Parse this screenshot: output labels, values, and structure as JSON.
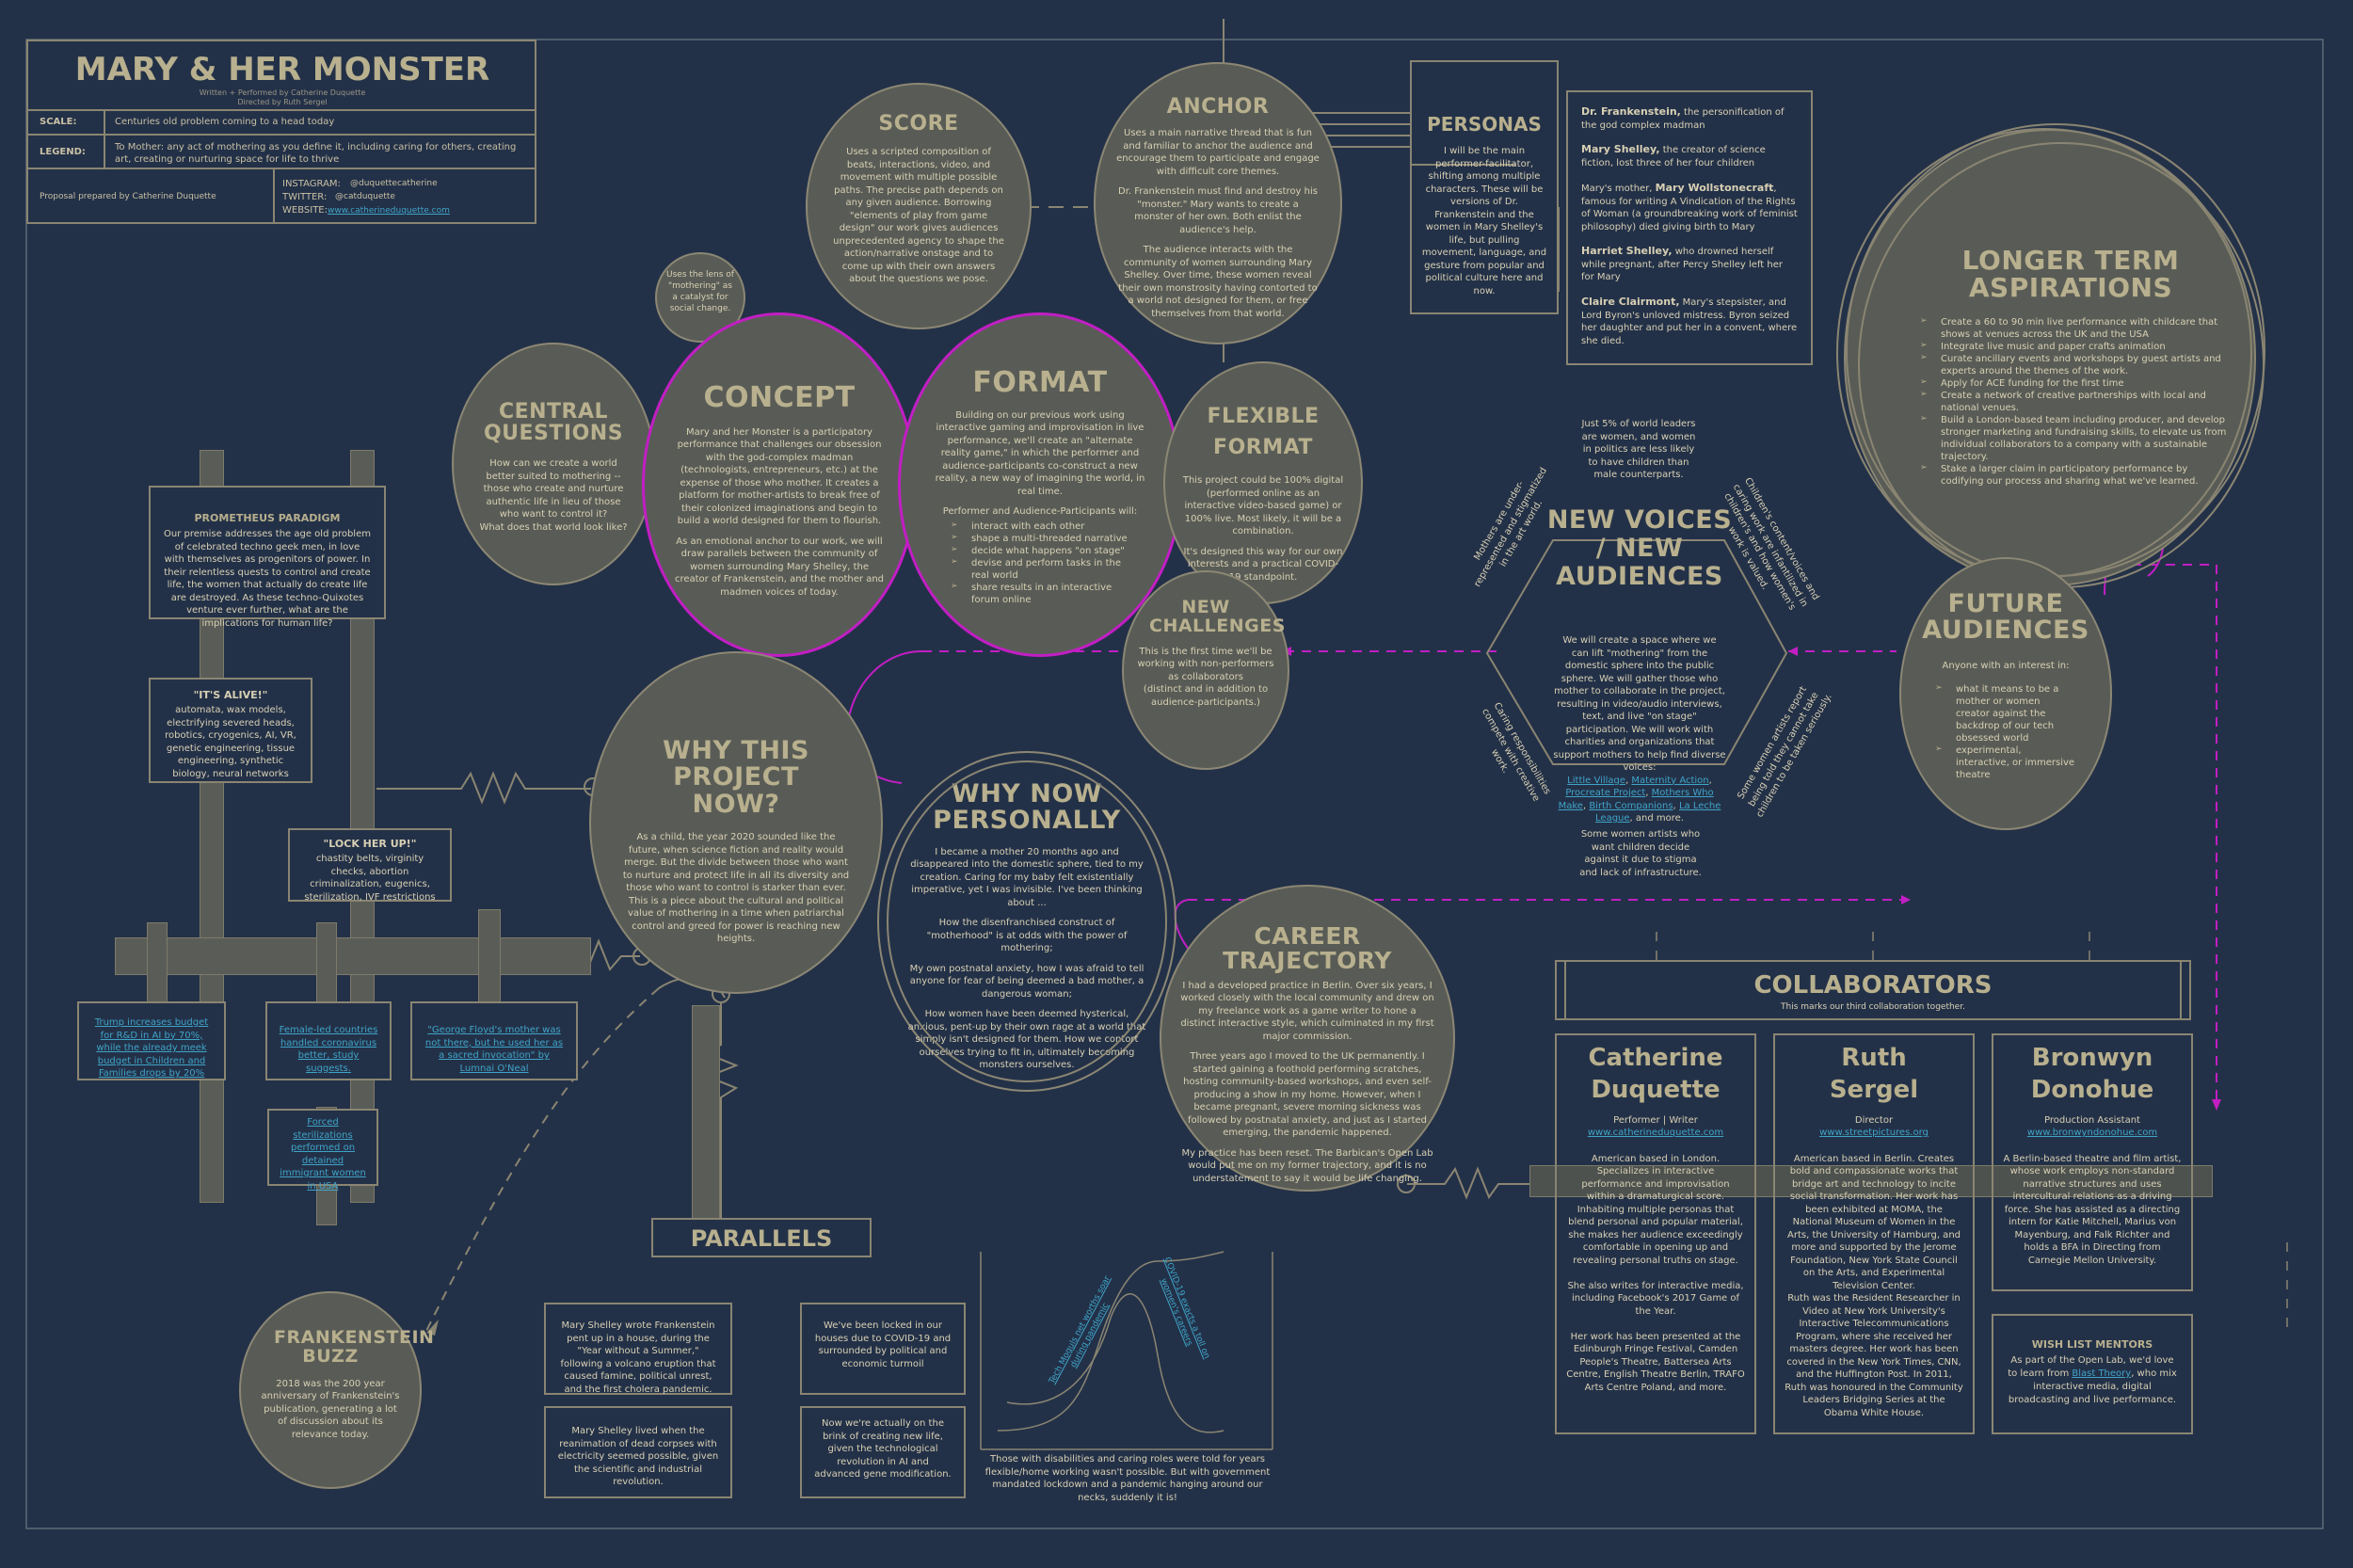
{
  "colors": {
    "background": "#233148",
    "line": "#8a8572",
    "circle_fill": "#595c56",
    "title": "#b8b08e",
    "accent_magenta": "#c21ec4",
    "link": "#3fa4c8"
  },
  "header": {
    "title": "MARY & HER  MONSTER",
    "credit_written": "Written + Performed by Catherine Duquette",
    "credit_directed": "Directed by Ruth Sergel",
    "scale_label": "SCALE:",
    "scale_value": "Centuries old problem coming to a head today",
    "legend_label": "LEGEND:",
    "legend_value": "To Mother: any act of mothering as you define it, including caring for others, creating art, creating or nurturing space for life to thrive",
    "prepared_by": "Proposal prepared by Catherine Duquette",
    "instagram_label": "INSTAGRAM:",
    "instagram_value": "@duquettecatherine",
    "twitter_label": "TWITTER:",
    "twitter_value": "@catduquette",
    "website_label": "WEBSITE:",
    "website_value": "www.catherineduquette.com"
  },
  "score": {
    "title": "SCORE",
    "body": "Uses a scripted composition of beats, interactions, video, and movement with multiple possible paths. The precise path depends on any given audience. Borrowing \"elements of play from game design\" our work gives audiences unprecedented agency to shape the action/narrative onstage and to come up with their own answers about the questions we pose."
  },
  "lens_note": "Uses the lens of \"mothering\" as a catalyst for social change.",
  "anchor": {
    "title": "ANCHOR",
    "body1": "Uses a main narrative thread that is fun and familiar to anchor the audience and encourage them to participate and engage with difficult core themes.",
    "body2": "Dr. Frankenstein must find and destroy his \"monster.\" Mary wants to create a monster of her own. Both enlist the audience's help.",
    "body3": "The audience interacts with the community of women surrounding Mary Shelley. Over time, these women reveal their own monstrosity having contorted to a world not designed for them, or free themselves from that world."
  },
  "personas": {
    "title": "PERSONAS",
    "body": "I will be the main performer-facilitator, shifting among multiple characters. These will be versions of Dr. Frankenstein and the women in Mary Shelley's life, but pulling movement, language, and gesture from popular and political culture here and now."
  },
  "characters": [
    {
      "name": "Dr. Frankenstein,",
      "desc": " the personification of the god complex madman"
    },
    {
      "name": "Mary Shelley,",
      "desc": " the creator of science fiction, lost three of her four children"
    },
    {
      "pre": "Mary's mother, ",
      "name": "Mary Wollstonecraft",
      "desc": ", famous for writing A Vindication of the Rights of Woman (a groundbreaking work of feminist philosophy) died giving birth to Mary"
    },
    {
      "name": "Harriet Shelley,",
      "desc": " who drowned herself while pregnant, after Percy Shelley left her for Mary"
    },
    {
      "name": "Claire Clairmont,",
      "desc": " Mary's stepsister, and Lord Byron's unloved mistress. Byron seized her daughter and put her in a convent, where she died."
    }
  ],
  "longer_term": {
    "title": "LONGER TERM ASPIRATIONS",
    "items": [
      "Create a 60 to 90 min live performance with childcare that shows at venues across the UK and the USA",
      "Integrate live music and paper crafts animation",
      "Curate ancillary events and workshops by guest artists and experts around the themes of the work.",
      "Apply for ACE funding for the first time",
      "Create a network of creative partnerships with local and national venues.",
      "Build a London-based team including producer, and develop stronger marketing and fundraising skills, to elevate us from individual collaborators to a company with a sustainable trajectory.",
      "Stake a larger claim in participatory performance by codifying our process and sharing what we've learned."
    ]
  },
  "central_questions": {
    "title": "CENTRAL QUESTIONS",
    "body": "How can we create a world better suited to mothering -- those who create and nurture authentic life in lieu of those who want to control it?\nWhat does that world look like?"
  },
  "concept": {
    "title": "CONCEPT",
    "body1": "Mary and her Monster is a participatory performance that challenges our obsession with the god-complex madman (technologists, entrepreneurs, etc.) at the expense of those who mother. It creates a platform for mother-artists to break free of their colonized imaginations and begin to build a world designed for them to flourish.",
    "body2": "As an emotional anchor to our work, we will draw parallels between the community of women surrounding Mary Shelley, the creator of Frankenstein, and the mother and madmen voices of today."
  },
  "format": {
    "title": "FORMAT",
    "body1": "Building on our previous work using interactive gaming and improvisation in live performance, we'll create an \"alternate reality game,\" in which the performer and audience-participants co-construct a new reality, a new way of imagining the world, in real time.",
    "body2": "Performer and Audience-Participants will:",
    "items": [
      "interact with each other",
      "shape a multi-threaded narrative",
      "decide what happens \"on stage\"",
      "devise and perform tasks in the real world",
      "share results in an interactive forum online"
    ]
  },
  "flexible_format": {
    "title": "FLEXIBLE FORMAT",
    "body1": "This project could be 100% digital (performed online as an interactive video-based game) or 100% live. Most likely, it will be a combination.",
    "body2": "It's designed this way for our own interests and a practical COVID-19 standpoint."
  },
  "new_challenges": {
    "title": "NEW CHALLENGES",
    "body1": "This is the first time we'll be working with non-performers as collaborators",
    "body2": "(distinct and in addition to audience-participants.)"
  },
  "new_voices": {
    "title": "NEW VOICES / NEW AUDIENCES",
    "top_note": "Just 5% of world leaders are women, and women in politics are less likely to have children than male counterparts.",
    "side_tl": "Mothers are under-represented and stigmatized in the art world.",
    "side_tr": "Children's content/voices and caring work are infantilized in children's and how women's work is valued.",
    "side_bl": "Caring responsibilities compete with creative work.",
    "side_br": "Some women artists report being told they cannot take children to be taken seriously.",
    "body": "We will create a space where we can lift \"mothering\" from the domestic sphere into the public sphere. We will gather those who mother to collaborate in the project, resulting in video/audio interviews, text, and live \"on stage\" participation. We will work with charities and organizations that support mothers to help find diverse voices:",
    "links": [
      "Little Village",
      "Maternity Action",
      "Procreate Project",
      "Mothers Who Make",
      "Birth Companions",
      "La Leche League"
    ],
    "links_end": "and more.",
    "bottom_note": "Some women artists who want children decide against it due to stigma and lack of infrastructure."
  },
  "future_audiences": {
    "title": "FUTURE AUDIENCES",
    "intro": "Anyone with an interest in:",
    "items": [
      "what it means to be a mother or women creator against the backdrop of our tech obsessed world",
      "experimental, interactive, or immersive theatre"
    ]
  },
  "prometheus": {
    "title": "PROMETHEUS PARADIGM",
    "body": "Our premise addresses the age old problem of celebrated techno geek men, in love with themselves as progenitors of power. In their relentless quests to control and create life, the women that actually do create life are destroyed. As these techno-Quixotes venture ever further, what are the implications for human life?"
  },
  "its_alive": {
    "title": "\"IT'S ALIVE!\"",
    "body": "automata, wax models, electrifying severed heads, robotics, cryogenics, AI, VR, genetic engineering, tissue engineering, synthetic biology, neural networks"
  },
  "lock_her_up": {
    "title": "\"LOCK HER UP!\"",
    "body": "chastity belts, virginity checks, abortion criminalization, eugenics, sterilization, IVF restrictions"
  },
  "news_links": [
    "Trump increases budget for R&D in AI by 70%, while the already meek budget in Children and Families drops by 20%",
    "Female-led countries handled coronavirus better, study suggests.",
    "\"George Floyd's mother was not there, but he used her as a sacred invocation\" by Lumnai O'Neal",
    "Forced sterilizations performed on detained immigrant women in USA"
  ],
  "why_now": {
    "title": "WHY THIS PROJECT NOW?",
    "body": "As a child, the year 2020 sounded like the future, when science fiction and reality would merge. But the divide between those who want to nurture and protect life in all its diversity and those who want to control is starker than ever. This is a piece about the cultural and political value of mothering in a time when patriarchal control and greed for power is reaching new heights."
  },
  "why_now_personally": {
    "title": "WHY NOW PERSONALLY",
    "body1": "I became a mother 20 months ago and disappeared into the domestic sphere, tied to my creation. Caring for my baby felt existentially imperative, yet I was invisible. I've been thinking about ...",
    "body2": "How the disenfranchised construct of \"motherhood\" is at odds with the power of mothering;",
    "body3": "My own postnatal anxiety, how I was afraid to tell anyone for fear of being deemed a bad mother, a dangerous woman;",
    "body4": "How women have been deemed hysterical, anxious, pent-up by their own rage at a world that simply isn't designed for them. How we contort ourselves trying to fit in, ultimately becoming monsters ourselves."
  },
  "career": {
    "title": "CAREER TRAJECTORY",
    "body1": "I had a developed practice in Berlin. Over six years, I worked closely with the local community and drew on my freelance work as a game writer to hone a distinct interactive style, which culminated in my first major commission.",
    "body2": "Three years ago I moved to the UK permanently. I started gaining a foothold performing scratches, hosting community-based workshops, and even self-producing a show in my home. However, when I became pregnant, severe morning sickness was followed by postnatal anxiety, and just as I started emerging, the pandemic happened.",
    "body3": "My practice has been reset. The Barbican's Open Lab would put me on my former trajectory, and it is no understatement to say it would be life changing."
  },
  "parallels": {
    "title": "PARALLELS",
    "box1": "Mary Shelley wrote Frankenstein pent up in a house, during the \"Year without a Summer,\" following a volcano eruption that caused famine, political unrest, and the first cholera pandemic.",
    "box2": "Mary Shelley lived when the reanimation of dead corpses with electricity seemed possible, given the scientific and industrial revolution.",
    "box3": "We've been locked in our houses due to COVID-19 and surrounded by political and economic turmoil",
    "box4": "Now we're actually on the brink of creating new life, given the technological revolution in AI and advanced gene modification.",
    "graph_link1": "Tech Moguls net worths soar during pandemic",
    "graph_link2": "COVID-19 exacts a toll on women's careers",
    "caption": "Those with disabilities and caring roles were told for years flexible/home working wasn't possible. But with government mandated lockdown and a pandemic hanging around our necks, suddenly it is!"
  },
  "frankenstein_buzz": {
    "title": "FRANKENSTEIN BUZZ",
    "body": "2018 was the 200 year anniversary of Frankenstein's publication, generating a lot of discussion about its relevance today."
  },
  "collaborators": {
    "title": "COLLABORATORS",
    "subtitle": "This marks our third collaboration together.",
    "people": [
      {
        "first": "Catherine",
        "last": "Duquette",
        "role": "Performer | Writer",
        "site": "www.catherineduquette.com",
        "bio": "American based in London. Specializes in interactive performance and improvisation within a dramaturgical score. Inhabiting multiple personas that blend personal and popular material, she makes her audience exceedingly comfortable in opening up and revealing personal truths on stage.\n\nShe also writes for interactive media, including Facebook's 2017 Game of the Year.\n\nHer work has been presented at the Edinburgh Fringe Festival, Camden People's Theatre, Battersea Arts Centre, English Theatre Berlin, TRAFO Arts Centre Poland, and more."
      },
      {
        "first": "Ruth",
        "last": "Sergel",
        "role": "Director",
        "site": "www.streetpictures.org",
        "bio": "American based in Berlin. Creates bold and compassionate works that bridge art and technology to incite social transformation. Her work has been exhibited at MOMA, the National Museum of Women in the Arts, the University of Hamburg, and more and supported by the Jerome Foundation, New York State Council on the Arts, and Experimental Television Center.\nRuth was the Resident Researcher in Video at New York University's Interactive Telecommunications Program, where she received her masters degree. Her work has been covered in the New York Times, CNN, and the Huffington Post. In 2011, Ruth was honoured in the Community Leaders Bridging Series at the Obama White House."
      },
      {
        "first": "Bronwyn",
        "last": "Donohue",
        "role": "Production Assistant",
        "site": "www.bronwyndonohue.com",
        "bio": "A Berlin-based theatre and film artist, whose work employs non-standard narrative structures and uses intercultural relations as a driving force. She has assisted as a directing intern for Katie Mitchell, Marius von Mayenburg, and Falk Richter and holds a BFA in Directing from Carnegie Mellon University."
      }
    ]
  },
  "wish_list": {
    "title": "WISH LIST MENTORS",
    "body_pre": "As part of the Open Lab, we'd love to learn from ",
    "link": "Blast Theory",
    "body_post": ", who mix interactive media, digital broadcasting and live performance."
  }
}
